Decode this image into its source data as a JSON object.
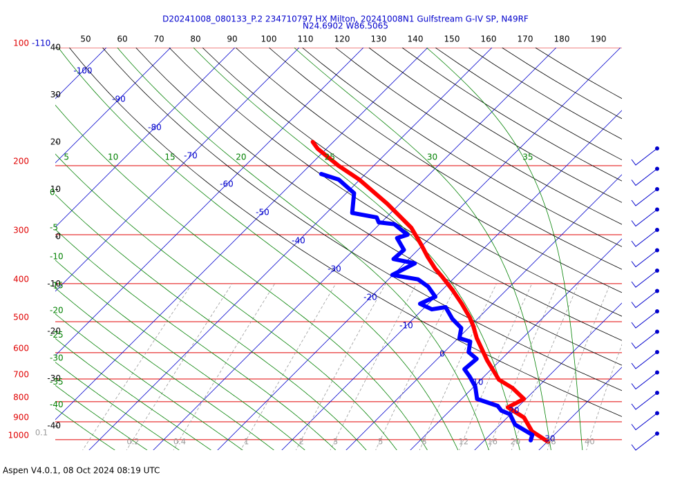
{
  "chart_data": {
    "type": "skew-t",
    "title": "D20241008_080133_P.2 234710797 HX Milton, 20241008N1 Gulfstream G-IV SP, N49RF",
    "subtitle": "N24.6902 W86.5065",
    "footer": "Aspen V4.0.1, 08 Oct 2024  08:19 UTC",
    "log_y": true,
    "ylim": [
      1063,
      100
    ],
    "yticks": [
      100,
      200,
      300,
      400,
      500,
      600,
      700,
      800,
      900,
      1000
    ],
    "pressure_color": "#e00000",
    "isotherms": [
      -110,
      -100,
      -90,
      -80,
      -70,
      -60,
      -50,
      -40,
      -30,
      -20,
      -10,
      0,
      10,
      20,
      30
    ],
    "isotherm_color": "#0000cc",
    "dry_adiabats": [
      50,
      60,
      70,
      80,
      90,
      100,
      110,
      120,
      130,
      140,
      150,
      160,
      170,
      180,
      190
    ],
    "left_scale": [
      40,
      30,
      20,
      10,
      0,
      -10,
      -20,
      -30,
      -40
    ],
    "moist_adiabats": [
      -40,
      -35,
      -30,
      -25,
      -20,
      -15,
      -10,
      -5,
      0,
      5,
      10,
      15,
      20,
      25,
      30,
      35
    ],
    "moist_color": "#008000",
    "mixing_ratios": [
      0.1,
      0.2,
      0.4,
      1,
      2,
      3,
      5,
      8,
      12,
      16,
      20,
      28,
      40
    ],
    "mixing_color": "#999999",
    "series": [
      {
        "color": "#ff0000",
        "pressure": [
          1012,
          952,
          878,
          827,
          787,
          738,
          703,
          628,
          551,
          512,
          488,
          450,
          415,
          383,
          367,
          341,
          319,
          288,
          250,
          217,
          200,
          181,
          174
        ],
        "values": [
          30.1,
          26.0,
          22.6,
          18.5,
          19.7,
          16.2,
          12.8,
          8.0,
          2.9,
          0.4,
          -1.4,
          -4.8,
          -8.4,
          -12.2,
          -14.3,
          -17.5,
          -20.2,
          -24.5,
          -32.0,
          -40.1,
          -45.5,
          -51.4,
          -53.2
        ]
      },
      {
        "color": "#0000ff",
        "pressure": [
          1004,
          972,
          915,
          861,
          843,
          820,
          787,
          732,
          689,
          661,
          622,
          598,
          562,
          551,
          519,
          492,
          459,
          465,
          450,
          432,
          407,
          390,
          380,
          355,
          346,
          328,
          306,
          300,
          282,
          279,
          271,
          264,
          235,
          217,
          210
        ],
        "values": [
          27.2,
          26.6,
          22.3,
          19.9,
          18.0,
          16.7,
          12.4,
          10.2,
          7.7,
          5.8,
          6.1,
          3.8,
          2.4,
          0.2,
          -1.1,
          -3.9,
          -6.8,
          -8.6,
          -11.3,
          -10.0,
          -12.7,
          -15.4,
          -20.1,
          -18.4,
          -22.4,
          -22.2,
          -25.1,
          -24.0,
          -27.7,
          -30.4,
          -31.5,
          -36.0,
          -38.8,
          -43.3,
          -46.9
        ]
      }
    ]
  }
}
